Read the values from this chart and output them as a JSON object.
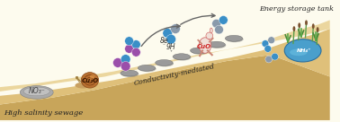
{
  "bg_color": "#fdfbee",
  "ground_base_color": "#c8a55a",
  "ground_upper_color": "#dfc07a",
  "ground_top_color": "#e8d090",
  "text_bottom_left": "High salinity sewage",
  "text_conductivity": "Conductivity-mediated",
  "text_energy_tank": "Energy storage tank",
  "text_8e": "8e",
  "text_9h": "9H",
  "text_no3": "NO₃⁻",
  "text_cu2o": "Cu₂O",
  "text_cuo": "CuO",
  "text_nh4": "NH₄⁺",
  "col_blue": "#3a8fc7",
  "col_gray": "#8a9aab",
  "col_purple": "#9b4faa",
  "col_pond": "#4a9fcc",
  "col_reed_green": "#5a9e4a",
  "col_reed_brown": "#7a5230",
  "col_stone": "#9a9a9a",
  "col_stone_dark": "#6a6a6a",
  "col_snail_shell": "#b87030",
  "col_snail_body": "#c8a060",
  "col_rock_fill": "#aaaaaa",
  "col_rock_edge": "#777777",
  "col_figure": "#e8c0b0",
  "col_arrow": "#666666",
  "col_text_main": "#333333",
  "col_text_label": "#222222"
}
